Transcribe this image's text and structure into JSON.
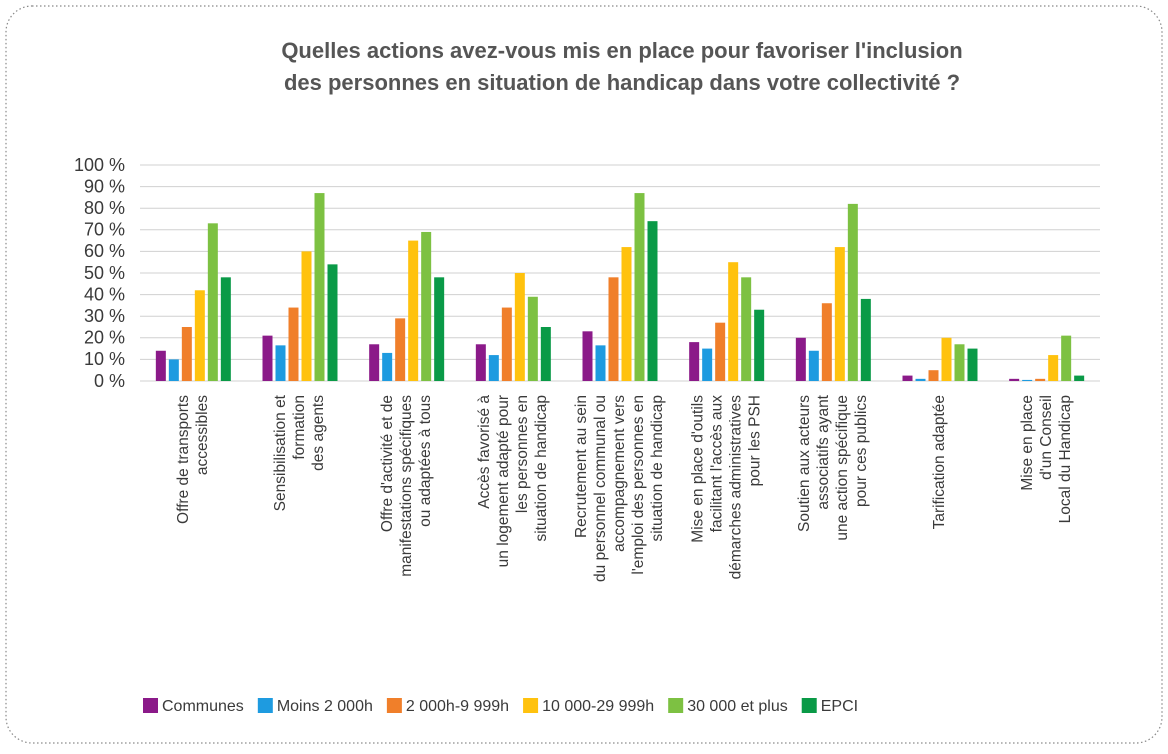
{
  "chart_data": {
    "type": "bar",
    "title": [
      "Quelles actions avez-vous mis en place pour favoriser l'inclusion",
      "des personnes en situation de handicap dans votre collectivité ?"
    ],
    "categories": [
      [
        "Offre de transports",
        "accessibles"
      ],
      [
        "Sensibilisation et",
        "formation",
        "des agents"
      ],
      [
        "Offre d'activité et de",
        "manifestations spécifiques",
        "ou adaptées à tous"
      ],
      [
        "Accès favorisé à",
        "un logement adapté pour",
        "les personnes en",
        "situation de handicap"
      ],
      [
        "Recrutement au sein",
        "du personnel communal ou",
        "accompagnement vers",
        "l'emploi des personnes en",
        "situation de handicap"
      ],
      [
        "Mise en place d'outils",
        "facilitant l'accès aux",
        "démarches administratives",
        "pour les PSH"
      ],
      [
        "Soutien aux acteurs",
        "associatifs ayant",
        "une action spécifique",
        "pour ces publics"
      ],
      [
        "Tarification adaptée"
      ],
      [
        "Mise en place",
        "d'un Conseil",
        "Local du Handicap"
      ]
    ],
    "series": [
      {
        "name": "Communes",
        "color": "#8b1a89",
        "values": [
          14,
          21,
          17,
          17,
          23,
          18,
          20,
          2.5,
          1
        ]
      },
      {
        "name": "Moins 2 000h",
        "color": "#1e9be0",
        "values": [
          10,
          16.5,
          13,
          12,
          16.5,
          15,
          14,
          1,
          0.5
        ]
      },
      {
        "name": "2 000h-9 999h",
        "color": "#f07f2a",
        "values": [
          25,
          34,
          29,
          34,
          48,
          27,
          36,
          5,
          1
        ]
      },
      {
        "name": "10 000-29 999h",
        "color": "#ffc20e",
        "values": [
          42,
          60,
          65,
          50,
          62,
          55,
          62,
          20,
          12
        ]
      },
      {
        "name": "30 000 et plus",
        "color": "#7dc142",
        "values": [
          73,
          87,
          69,
          39,
          87,
          48,
          82,
          17,
          21
        ]
      },
      {
        "name": "EPCI",
        "color": "#0a9a47",
        "values": [
          48,
          54,
          48,
          25,
          74,
          33,
          38,
          15,
          2.5
        ]
      }
    ],
    "ylim": [
      0,
      100
    ],
    "yticks": [
      {
        "value": 0,
        "label": "0 %"
      },
      {
        "value": 10,
        "label": "10 %"
      },
      {
        "value": 20,
        "label": "20 %"
      },
      {
        "value": 30,
        "label": "30 %"
      },
      {
        "value": 40,
        "label": "40 %"
      },
      {
        "value": 50,
        "label": "50 %"
      },
      {
        "value": 60,
        "label": "60 %"
      },
      {
        "value": 70,
        "label": "70 %"
      },
      {
        "value": 80,
        "label": "80 %"
      },
      {
        "value": 90,
        "label": "90 %"
      },
      {
        "value": 100,
        "label": "100 %"
      }
    ],
    "grid": true,
    "legend": "bottom"
  }
}
